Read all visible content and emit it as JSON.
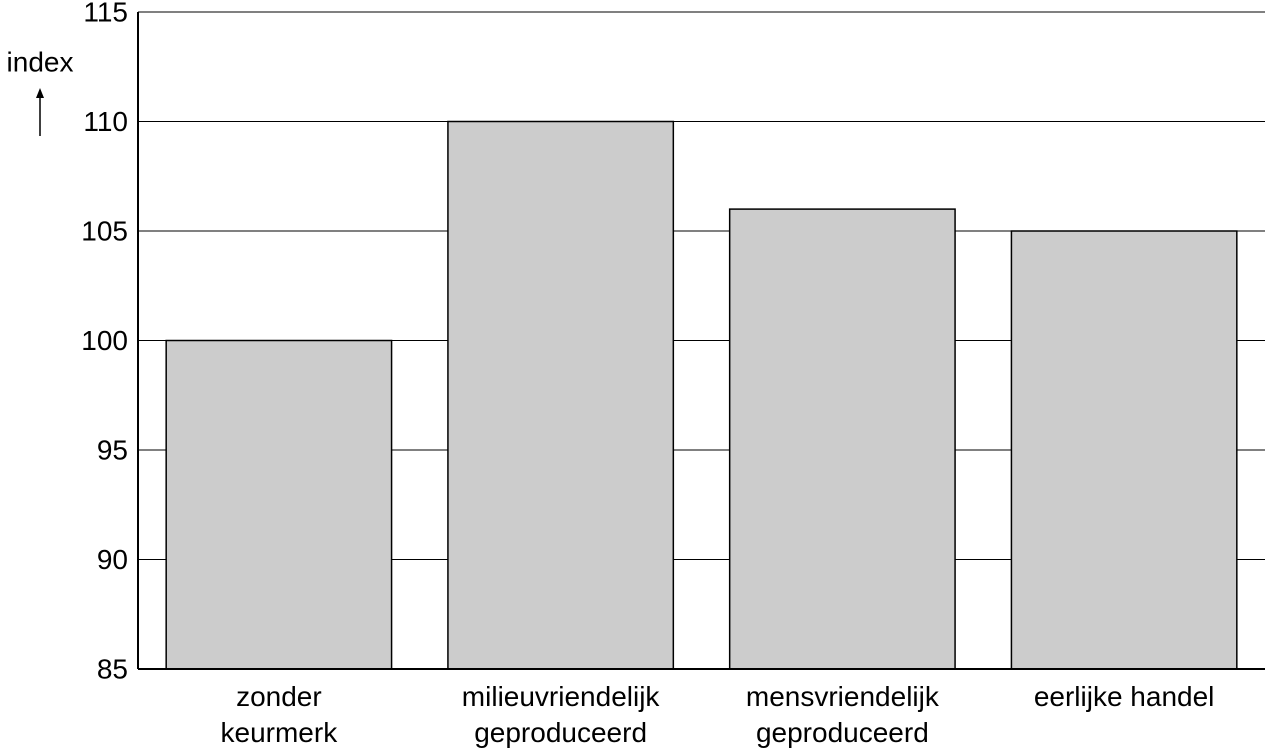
{
  "chart_data": {
    "type": "bar",
    "y_label": "index",
    "categories": [
      "zonder\nkeurmerk",
      "milieuvriendelijk\ngeproduceerd",
      "mensvriendelijk\ngeproduceerd",
      "eerlijke handel"
    ],
    "values": [
      100,
      110,
      106,
      105
    ],
    "color": "#cccccc",
    "ylim": [
      85,
      115
    ],
    "yticks": [
      85,
      90,
      95,
      100,
      105,
      110,
      115
    ],
    "grid": true
  }
}
